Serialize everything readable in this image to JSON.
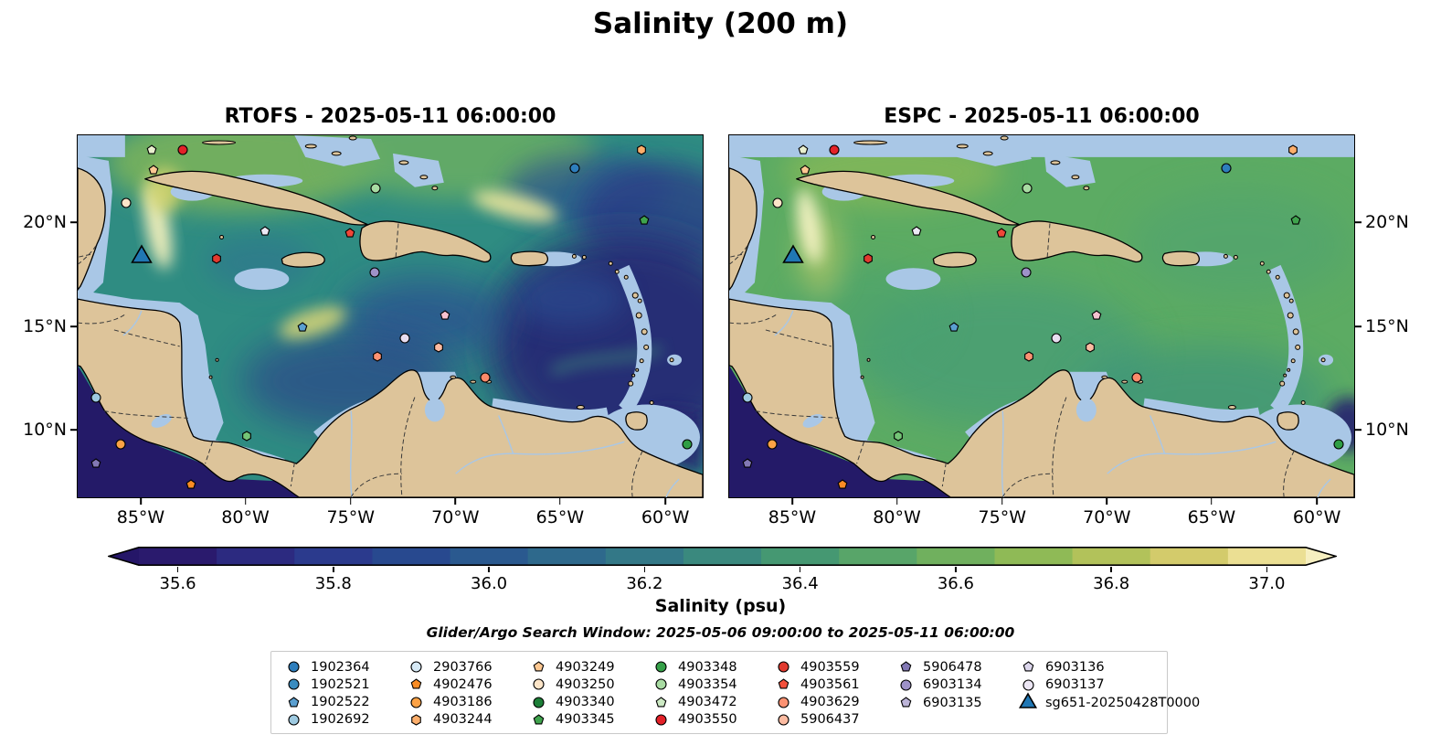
{
  "figure": {
    "title": "Salinity (200 m)"
  },
  "panels": [
    {
      "id": "rtofs",
      "title": "RTOFS - 2025-05-11 06:00:00",
      "lat_label_side": "left"
    },
    {
      "id": "espc",
      "title": "ESPC - 2025-05-11 06:00:00",
      "lat_label_side": "right"
    }
  ],
  "axes": {
    "x_ticks": [
      {
        "label": "85°W",
        "pos": 10.2
      },
      {
        "label": "80°W",
        "pos": 26.9
      },
      {
        "label": "75°W",
        "pos": 43.7
      },
      {
        "label": "70°W",
        "pos": 60.4
      },
      {
        "label": "65°W",
        "pos": 77.1
      },
      {
        "label": "60°W",
        "pos": 93.9
      }
    ],
    "y_ticks": [
      {
        "label": "20°N",
        "pos": 24.1
      },
      {
        "label": "15°N",
        "pos": 52.8
      },
      {
        "label": "10°N",
        "pos": 81.2
      }
    ]
  },
  "colorbar": {
    "label": "Salinity (psu)",
    "vmin": 35.55,
    "vmax": 37.05,
    "under_color": "#251668",
    "over_color": "#f6efc0",
    "colors": [
      "#2a1a6d",
      "#2c2a80",
      "#2b3a8d",
      "#28498f",
      "#2a598f",
      "#2e698c",
      "#337887",
      "#3a897e",
      "#459872",
      "#58a569",
      "#70b05e",
      "#8fba56",
      "#b2c25a",
      "#d3cb6b",
      "#ebdf93"
    ],
    "ticks": [
      {
        "label": "35.6",
        "value": 35.6
      },
      {
        "label": "35.8",
        "value": 35.8
      },
      {
        "label": "36.0",
        "value": 36.0
      },
      {
        "label": "36.2",
        "value": 36.2
      },
      {
        "label": "36.4",
        "value": 36.4
      },
      {
        "label": "36.6",
        "value": 36.6
      },
      {
        "label": "36.8",
        "value": 36.8
      },
      {
        "label": "37.0",
        "value": 37.0
      }
    ]
  },
  "search_window": "Glider/Argo Search Window: 2025-05-06 09:00:00 to 2025-05-11 06:00:00",
  "legend": {
    "columns": [
      [
        {
          "label": "1902364",
          "shape": "circle",
          "color": "#2e7ebc"
        },
        {
          "label": "1902521",
          "shape": "circle",
          "color": "#3a8cc0"
        },
        {
          "label": "1902522",
          "shape": "pentagon",
          "color": "#5a9fd0"
        },
        {
          "label": "1902692",
          "shape": "circle",
          "color": "#9ecae1"
        }
      ],
      [
        {
          "label": "2903766",
          "shape": "circle",
          "color": "#d6e9f5"
        },
        {
          "label": "4902476",
          "shape": "pentagon",
          "color": "#f98c24"
        },
        {
          "label": "4903186",
          "shape": "circle",
          "color": "#fda245"
        },
        {
          "label": "4903244",
          "shape": "hexagon",
          "color": "#fdae6b"
        }
      ],
      [
        {
          "label": "4903249",
          "shape": "pentagon",
          "color": "#fdc892"
        },
        {
          "label": "4903250",
          "shape": "circle",
          "color": "#fde5c8"
        },
        {
          "label": "4903340",
          "shape": "circle",
          "color": "#1d7f38"
        },
        {
          "label": "4903345",
          "shape": "pentagon",
          "color": "#3fa34d"
        }
      ],
      [
        {
          "label": "4903348",
          "shape": "circle",
          "color": "#35a048"
        },
        {
          "label": "4903354",
          "shape": "circle",
          "color": "#a8dba2"
        },
        {
          "label": "4903472",
          "shape": "pentagon",
          "color": "#cdeac4"
        },
        {
          "label": "4903550",
          "shape": "circle",
          "color": "#e32128"
        }
      ],
      [
        {
          "label": "4903559",
          "shape": "circle",
          "color": "#e13a2f"
        },
        {
          "label": "4903561",
          "shape": "pentagon",
          "color": "#f4503c"
        },
        {
          "label": "4903629",
          "shape": "circle",
          "color": "#fc9272"
        },
        {
          "label": "5906437",
          "shape": "circle",
          "color": "#fcbba1"
        }
      ],
      [
        {
          "label": "5906478",
          "shape": "pentagon",
          "color": "#8278b4"
        },
        {
          "label": "6903134",
          "shape": "circle",
          "color": "#9e92c8"
        },
        {
          "label": "6903135",
          "shape": "pentagon",
          "color": "#bcb4d8"
        }
      ],
      [
        {
          "label": "6903136",
          "shape": "pentagon",
          "color": "#dcd6ec"
        },
        {
          "label": "6903137",
          "shape": "circle",
          "color": "#ece6f4"
        },
        {
          "label": "sg651-20250428T0000",
          "shape": "triangle",
          "color": "#2077b4"
        }
      ]
    ]
  },
  "markers": [
    {
      "shape": "pentagon",
      "color": "#e9f0cf",
      "x": 11.8,
      "y": 4.0
    },
    {
      "shape": "circle",
      "color": "#e32128",
      "x": 16.8,
      "y": 4.0
    },
    {
      "shape": "pentagon",
      "color": "#fdc892",
      "x": 12.2,
      "y": 9.5
    },
    {
      "shape": "hexagon",
      "color": "#fdae6b",
      "x": 90.2,
      "y": 4.0
    },
    {
      "shape": "circle",
      "color": "#2e7ebc",
      "x": 79.6,
      "y": 9.0
    },
    {
      "shape": "circle",
      "color": "#a8dba2",
      "x": 47.7,
      "y": 14.6
    },
    {
      "shape": "circle",
      "color": "#fde5c8",
      "x": 7.7,
      "y": 18.8
    },
    {
      "shape": "pentagon",
      "color": "#3fa34d",
      "x": 90.7,
      "y": 23.6
    },
    {
      "shape": "pentagon",
      "color": "#eceaf5",
      "x": 30.0,
      "y": 26.4
    },
    {
      "shape": "pentagon",
      "color": "#ef4638",
      "x": 43.6,
      "y": 27.1
    },
    {
      "id": "sg651-20250428T0000",
      "shape": "triangle",
      "color": "#2077b4",
      "x": 10.3,
      "y": 33.7,
      "size": 26
    },
    {
      "shape": "hexagon",
      "color": "#e13a2f",
      "x": 22.2,
      "y": 34.2
    },
    {
      "shape": "circle",
      "color": "#9e92c8",
      "x": 47.5,
      "y": 37.9
    },
    {
      "shape": "pentagon",
      "color": "#5a9fd0",
      "x": 35.9,
      "y": 53.0
    },
    {
      "shape": "pentagon",
      "color": "#f6c3d0",
      "x": 58.7,
      "y": 49.7
    },
    {
      "shape": "circle",
      "color": "#e8ddf0",
      "x": 52.3,
      "y": 56.0
    },
    {
      "shape": "hexagon",
      "color": "#fcbba1",
      "x": 57.7,
      "y": 58.5
    },
    {
      "shape": "hexagon",
      "color": "#fc9272",
      "x": 48.0,
      "y": 61.1
    },
    {
      "shape": "circle",
      "color": "#fb8a6a",
      "x": 65.2,
      "y": 66.8
    },
    {
      "shape": "circle",
      "color": "#9ecae1",
      "x": 2.9,
      "y": 72.6
    },
    {
      "shape": "hexagon",
      "color": "#74c476",
      "x": 27.1,
      "y": 83.2
    },
    {
      "shape": "circle",
      "color": "#fda245",
      "x": 6.9,
      "y": 85.4
    },
    {
      "shape": "circle",
      "color": "#2f9e44",
      "x": 97.5,
      "y": 85.4
    },
    {
      "shape": "pentagon",
      "color": "#8278b4",
      "x": 2.9,
      "y": 90.7
    },
    {
      "shape": "pentagon",
      "color": "#f98c24",
      "x": 18.2,
      "y": 96.5
    }
  ],
  "chart_data": {
    "type": "heatmap",
    "title": "Salinity (200 m)",
    "panels": [
      {
        "title": "RTOFS - 2025-05-11 06:00:00",
        "description": "Caribbean Sea salinity field at 200 m depth. Fresh dark-blue water (~35.5-35.9 psu) fills the eastern Caribbean/tropical Atlantic, the central Colombia basin, the Pacific southwest corner and the area east of Trinidad; salty yellow filaments (~36.8-37.0 psu) near the Yucatan Channel loop current, south of central Cuba and northeast of Hispaniola; background teal-green ~36.1-36.4 psu."
      },
      {
        "title": "ESPC - 2025-05-11 06:00:00",
        "description": "Same region, smoother and saltier field: mostly uniform green ~36.4-36.6 psu across the Caribbean and Atlantic, pale light-blue no-data band along the northern map edge and over shallow shelves; dark fresh water only in the Pacific corner and a small patch east of Trinidad; bright salty filament at the Yucatan Channel."
      }
    ],
    "x_ticks": [
      "85°W",
      "80°W",
      "75°W",
      "70°W",
      "65°W",
      "60°W"
    ],
    "y_ticks": [
      "20°N",
      "15°N",
      "10°N"
    ],
    "colorbar": {
      "label": "Salinity (psu)",
      "tick_values": [
        35.6,
        35.8,
        36.0,
        36.2,
        36.4,
        36.6,
        36.8,
        37.0
      ],
      "range": [
        35.55,
        37.05
      ],
      "extend": "both",
      "orientation": "horizontal"
    },
    "annotation": "Glider/Argo Search Window: 2025-05-06 09:00:00 to 2025-05-11 06:00:00",
    "legend_entries": [
      "1902364",
      "1902521",
      "1902522",
      "1902692",
      "2903766",
      "4902476",
      "4903186",
      "4903244",
      "4903249",
      "4903250",
      "4903340",
      "4903345",
      "4903348",
      "4903354",
      "4903472",
      "4903550",
      "4903559",
      "4903561",
      "4903629",
      "5906437",
      "5906478",
      "6903134",
      "6903135",
      "6903136",
      "6903137",
      "sg651-20250428T0000"
    ],
    "legend_position": "bottom"
  }
}
